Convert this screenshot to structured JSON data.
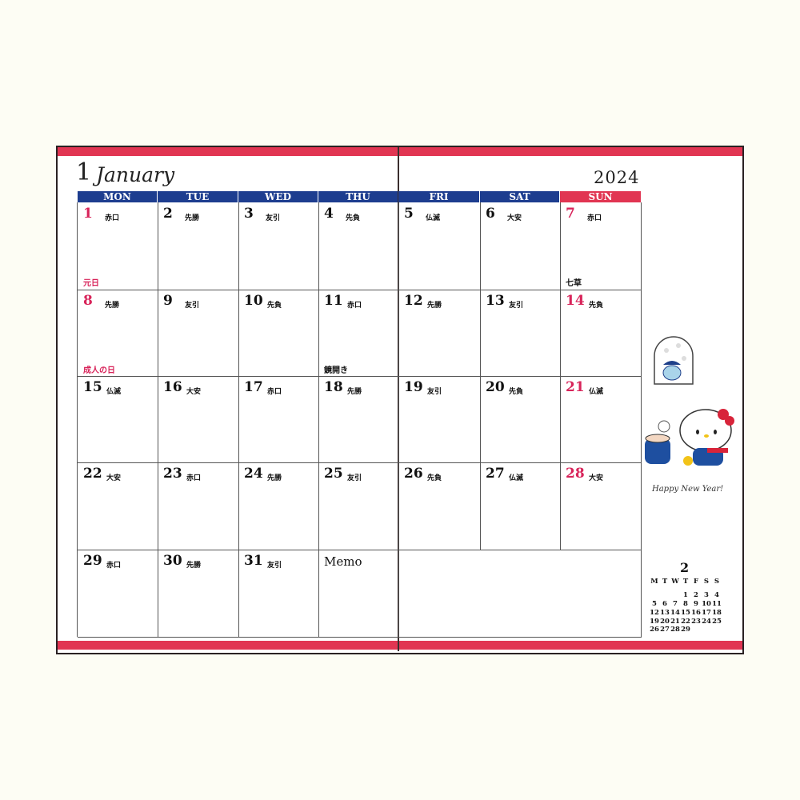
{
  "header": {
    "month_number": "1",
    "month_name": "January",
    "year": "2024"
  },
  "weekdays": [
    "MON",
    "TUE",
    "WED",
    "THU",
    "FRI",
    "SAT",
    "SUN"
  ],
  "weeks": [
    [
      {
        "date": "1",
        "rokuyo": "赤口",
        "holiday": "元日",
        "red": true,
        "holiday_red": true
      },
      {
        "date": "2",
        "rokuyo": "先勝"
      },
      {
        "date": "3",
        "rokuyo": "友引"
      },
      {
        "date": "4",
        "rokuyo": "先負"
      },
      {
        "date": "5",
        "rokuyo": "仏滅"
      },
      {
        "date": "6",
        "rokuyo": "大安"
      },
      {
        "date": "7",
        "rokuyo": "赤口",
        "holiday": "七草"
      }
    ],
    [
      {
        "date": "8",
        "rokuyo": "先勝",
        "holiday": "成人の日",
        "red": true,
        "holiday_red": true
      },
      {
        "date": "9",
        "rokuyo": "友引"
      },
      {
        "date": "10",
        "rokuyo": "先負"
      },
      {
        "date": "11",
        "rokuyo": "赤口",
        "holiday": "鏡開き"
      },
      {
        "date": "12",
        "rokuyo": "先勝"
      },
      {
        "date": "13",
        "rokuyo": "友引"
      },
      {
        "date": "14",
        "rokuyo": "先負"
      }
    ],
    [
      {
        "date": "15",
        "rokuyo": "仏滅"
      },
      {
        "date": "16",
        "rokuyo": "大安"
      },
      {
        "date": "17",
        "rokuyo": "赤口"
      },
      {
        "date": "18",
        "rokuyo": "先勝"
      },
      {
        "date": "19",
        "rokuyo": "友引"
      },
      {
        "date": "20",
        "rokuyo": "先負"
      },
      {
        "date": "21",
        "rokuyo": "仏滅"
      }
    ],
    [
      {
        "date": "22",
        "rokuyo": "大安"
      },
      {
        "date": "23",
        "rokuyo": "赤口"
      },
      {
        "date": "24",
        "rokuyo": "先勝"
      },
      {
        "date": "25",
        "rokuyo": "友引"
      },
      {
        "date": "26",
        "rokuyo": "先負"
      },
      {
        "date": "27",
        "rokuyo": "仏滅"
      },
      {
        "date": "28",
        "rokuyo": "大安"
      }
    ],
    [
      {
        "date": "29",
        "rokuyo": "赤口"
      },
      {
        "date": "30",
        "rokuyo": "先勝"
      },
      {
        "date": "31",
        "rokuyo": "友引"
      }
    ]
  ],
  "memo_label": "Memo",
  "illustration_caption": "Happy New Year!",
  "mini_calendar": {
    "month": "2",
    "weekdays": [
      "M",
      "T",
      "W",
      "T",
      "F",
      "S",
      "S"
    ],
    "weeks": [
      [
        null,
        null,
        null,
        {
          "day": "1"
        },
        {
          "day": "2"
        },
        {
          "day": "3"
        },
        {
          "day": "4"
        }
      ],
      [
        {
          "day": "5"
        },
        {
          "day": "6"
        },
        {
          "day": "7"
        },
        {
          "day": "8"
        },
        {
          "day": "9"
        },
        {
          "day": "10"
        },
        {
          "day": "11"
        }
      ],
      [
        {
          "day": "12",
          "red": true
        },
        {
          "day": "13"
        },
        {
          "day": "14"
        },
        {
          "day": "15"
        },
        {
          "day": "16"
        },
        {
          "day": "17"
        },
        {
          "day": "18"
        }
      ],
      [
        {
          "day": "19"
        },
        {
          "day": "20"
        },
        {
          "day": "21"
        },
        {
          "day": "22"
        },
        {
          "day": "23",
          "red": true
        },
        {
          "day": "24"
        },
        {
          "day": "25"
        }
      ],
      [
        {
          "day": "26"
        },
        {
          "day": "27"
        },
        {
          "day": "28"
        },
        {
          "day": "29"
        }
      ]
    ]
  }
}
